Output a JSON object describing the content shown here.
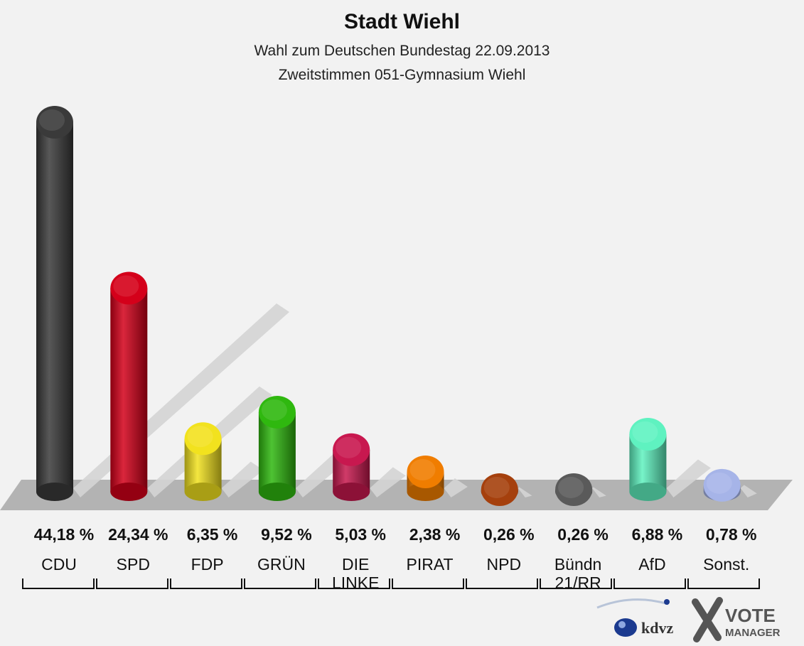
{
  "chart_data": {
    "type": "bar",
    "title": "Stadt Wiehl",
    "subtitle": [
      "Wahl zum Deutschen Bundestag 22.09.2013",
      "Zweitstimmen 051-Gymnasium Wiehl"
    ],
    "categories": [
      "CDU",
      "SPD",
      "FDP",
      "GRÜN",
      "DIE LINKE",
      "PIRAT",
      "NPD",
      "Bündn 21/RR",
      "AfD",
      "Sonst."
    ],
    "category_lines": [
      [
        "CDU"
      ],
      [
        "SPD"
      ],
      [
        "FDP"
      ],
      [
        "GRÜN"
      ],
      [
        "DIE",
        "LINKE"
      ],
      [
        "PIRAT"
      ],
      [
        "NPD"
      ],
      [
        "Bündn",
        "21/RR"
      ],
      [
        "AfD"
      ],
      [
        "Sonst."
      ]
    ],
    "values": [
      44.18,
      24.34,
      6.35,
      9.52,
      5.03,
      2.38,
      0.26,
      0.26,
      6.88,
      0.78
    ],
    "value_labels": [
      "44,18 %",
      "24,34 %",
      "6,35 %",
      "9,52 %",
      "5,03 %",
      "2,38 %",
      "0,26 %",
      "0,26 %",
      "6,88 %",
      "0,78 %"
    ],
    "colors": [
      "#3a3a3a",
      "#d4001a",
      "#f2e21e",
      "#2fb80f",
      "#c8184f",
      "#f07d00",
      "#a5400d",
      "#5a5a5a",
      "#5ff2c0",
      "#a6b4e8"
    ],
    "ylim": [
      0,
      44.18
    ],
    "grid": false,
    "legend": "none"
  },
  "logos": {
    "left_text": "kdvz",
    "right_line1": "VOTE",
    "right_line2": "MANAGER"
  }
}
